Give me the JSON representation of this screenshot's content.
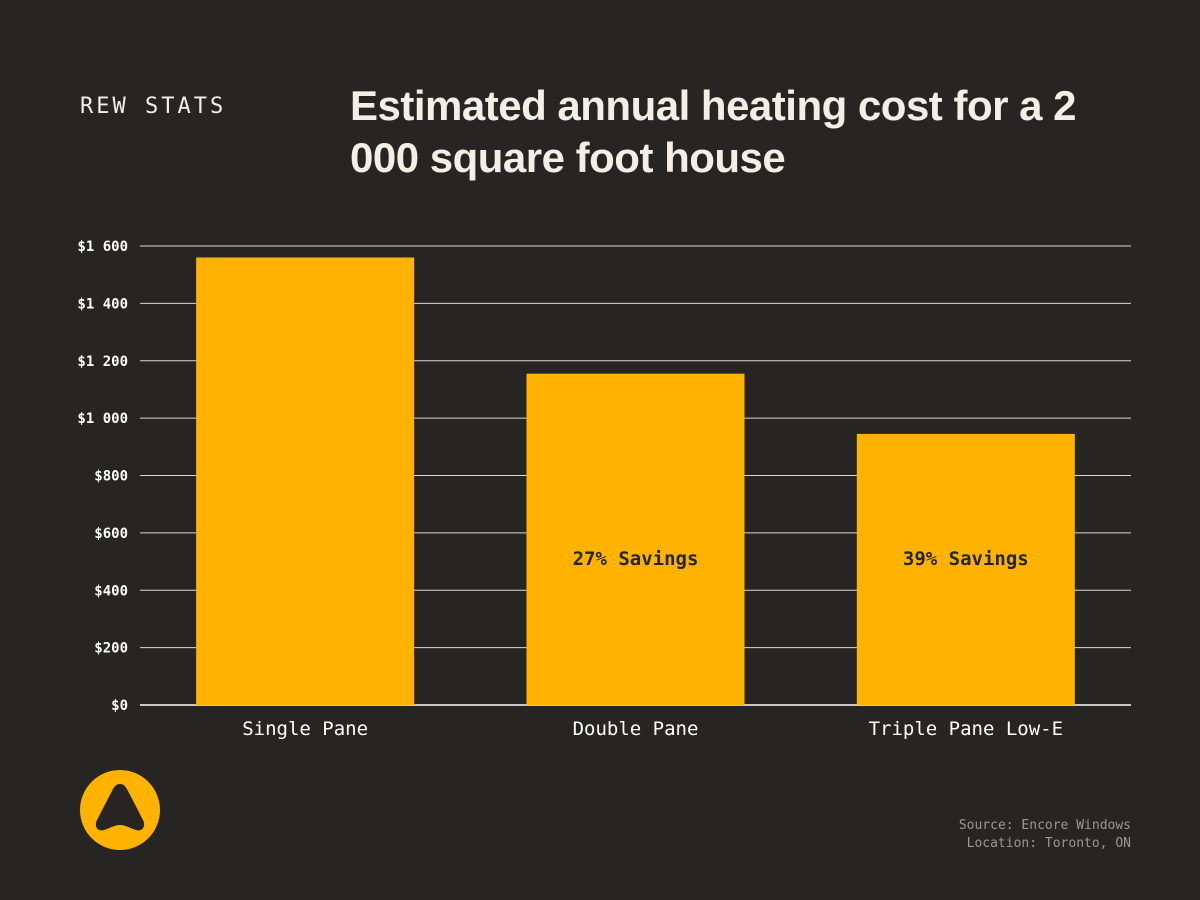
{
  "brand": "REW STATS",
  "title": "Estimated annual heating cost for a 2 000 square foot house",
  "colors": {
    "background": "#262524",
    "bar": "#ffb300",
    "grid": "#d8d6d0",
    "text": "#ffffff",
    "muted": "#9a9893"
  },
  "logo_icon": "triangle-logo-icon",
  "chart_data": {
    "type": "bar",
    "title": "Estimated annual heating cost for a 2 000 square foot house",
    "xlabel": "",
    "ylabel": "",
    "categories": [
      "Single Pane",
      "Double Pane",
      "Triple Pane Low-E"
    ],
    "values": [
      1560,
      1155,
      945
    ],
    "data_labels": [
      "",
      "27% Savings",
      "39% Savings"
    ],
    "ylim": [
      0,
      1600
    ],
    "yticks": [
      0,
      200,
      400,
      600,
      800,
      1000,
      1200,
      1400,
      1600
    ],
    "ytick_labels": [
      "$0",
      "$200",
      "$400",
      "$600",
      "$800",
      "$1 000",
      "$1 200",
      "$1 400",
      "$1 600"
    ],
    "grid": true,
    "legend": "none"
  },
  "source": {
    "line1": "Source: Encore Windows",
    "line2": "Location: Toronto, ON"
  }
}
